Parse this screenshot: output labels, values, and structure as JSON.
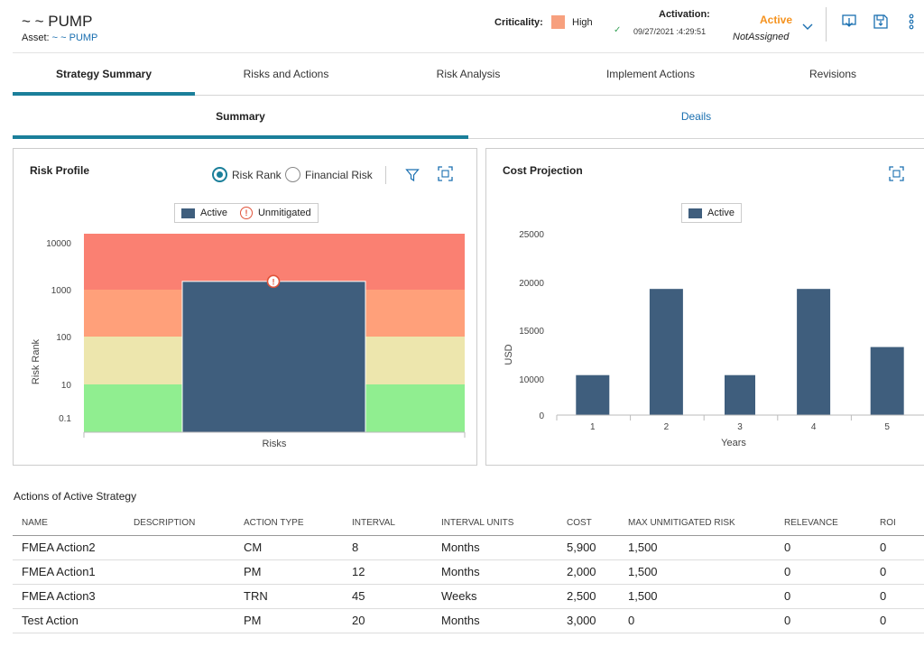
{
  "header": {
    "title": "~ ~ PUMP",
    "asset_label": "Asset:",
    "asset_link": "~ ~ PUMP",
    "criticality_label": "Criticality:",
    "criticality_value": "High",
    "criticality_color": "#f7a07e",
    "activation_label": "Activation:",
    "activation_date": "09/27/2021 :4:29:51",
    "state": "Active",
    "state_color": "#f5921e",
    "owner": "NotAssigned",
    "icons": [
      "chevron-down-icon",
      "import-icon",
      "save-icon",
      "more-vertical-icon"
    ]
  },
  "tabs": [
    {
      "label": "Strategy Summary",
      "active": true
    },
    {
      "label": "Risks and Actions",
      "active": false
    },
    {
      "label": "Risk Analysis",
      "active": false
    },
    {
      "label": "Implement Actions",
      "active": false
    },
    {
      "label": "Revisions",
      "active": false
    }
  ],
  "subtabs": [
    {
      "label": "Summary",
      "active": true
    },
    {
      "label": "Deails",
      "active": false
    }
  ],
  "risk_profile": {
    "title": "Risk Profile",
    "radio_options": [
      {
        "label": "Risk Rank",
        "selected": true
      },
      {
        "label": "Financial Risk",
        "selected": false
      }
    ],
    "legend": {
      "active": "Active",
      "unmitigated": "Unmitigated"
    }
  },
  "cost_projection": {
    "title": "Cost Projection",
    "legend": {
      "active": "Active"
    }
  },
  "chart_data": [
    {
      "type": "bar",
      "title": "Risk Profile",
      "xlabel": "Risks",
      "ylabel": "Risk Rank",
      "y_scale": "log",
      "yticks": [
        "10000",
        "1000",
        "100",
        "10",
        "0.1"
      ],
      "bands": [
        {
          "from": 0.1,
          "to": 10,
          "color": "#90ee90"
        },
        {
          "from": 10,
          "to": 100,
          "color": "#ede6ad"
        },
        {
          "from": 100,
          "to": 1000,
          "color": "#ffa07a"
        },
        {
          "from": 1000,
          "to": 10000,
          "color": "#fa8072"
        }
      ],
      "series": [
        {
          "name": "Active",
          "values": [
            1500
          ],
          "color": "#3f5e7d"
        }
      ],
      "unmitigated_marker": 1500,
      "legend_position": "top-center"
    },
    {
      "type": "bar",
      "title": "Cost Projection",
      "xlabel": "Years",
      "ylabel": "USD",
      "categories": [
        "1",
        "2",
        "3",
        "4",
        "5"
      ],
      "yticks": [
        "25000",
        "20000",
        "15000",
        "10000",
        "0"
      ],
      "series": [
        {
          "name": "Active",
          "values": [
            10400,
            19300,
            10400,
            19300,
            13300
          ],
          "color": "#3f5e7d"
        }
      ],
      "ylim": [
        0,
        25000
      ],
      "legend_position": "top-center"
    }
  ],
  "actions_table": {
    "title": "Actions of Active Strategy",
    "columns": [
      "NAME",
      "DESCRIPTION",
      "ACTION TYPE",
      "INTERVAL",
      "INTERVAL UNITS",
      "COST",
      "MAX UNMITIGATED RISK",
      "RELEVANCE",
      "ROI"
    ],
    "rows": [
      [
        "FMEA Action2",
        "",
        "CM",
        "8",
        "Months",
        "5,900",
        "1,500",
        "0",
        "0"
      ],
      [
        "FMEA Action1",
        "",
        "PM",
        "12",
        "Months",
        "2,000",
        "1,500",
        "0",
        "0"
      ],
      [
        "FMEA Action3",
        "",
        "TRN",
        "45",
        "Weeks",
        "2,500",
        "1,500",
        "0",
        "0"
      ],
      [
        "Test Action",
        "",
        "PM",
        "20",
        "Months",
        "3,000",
        "0",
        "0",
        "0"
      ]
    ]
  }
}
